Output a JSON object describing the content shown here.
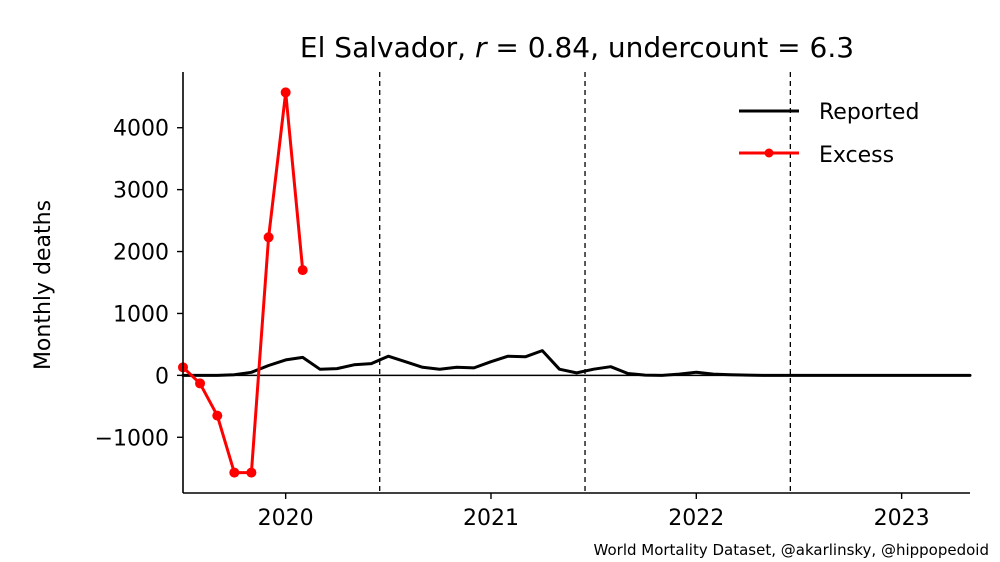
{
  "chart_data": {
    "type": "line",
    "title_parts": {
      "country": "El Salvador, ",
      "r_symbol": "r",
      "r_value": " = 0.84, undercount = 6.3"
    },
    "ylabel": "Monthly deaths",
    "ylim": [
      -1900,
      4900
    ],
    "xlim": [
      2019.5,
      2023.333
    ],
    "y_ticks": [
      {
        "value": -1000,
        "label": "−1000"
      },
      {
        "value": 0,
        "label": "0"
      },
      {
        "value": 1000,
        "label": "1000"
      },
      {
        "value": 2000,
        "label": "2000"
      },
      {
        "value": 3000,
        "label": "3000"
      },
      {
        "value": 4000,
        "label": "4000"
      }
    ],
    "x_ticks": [
      {
        "value": 2020,
        "label": "2020"
      },
      {
        "value": 2021,
        "label": "2021"
      },
      {
        "value": 2022,
        "label": "2022"
      },
      {
        "value": 2023,
        "label": "2023"
      }
    ],
    "vlines": [
      2020.458,
      2021.458,
      2022.458
    ],
    "legend_position": "top-right",
    "series": [
      {
        "name": "Reported",
        "color": "#000000",
        "markers": false,
        "x": [
          2019.5,
          2019.583,
          2019.667,
          2019.75,
          2019.833,
          2019.917,
          2020.0,
          2020.083,
          2020.167,
          2020.25,
          2020.333,
          2020.417,
          2020.5,
          2020.583,
          2020.667,
          2020.75,
          2020.833,
          2020.917,
          2021.0,
          2021.083,
          2021.167,
          2021.25,
          2021.333,
          2021.417,
          2021.5,
          2021.583,
          2021.667,
          2021.75,
          2021.833,
          2021.917,
          2022.0,
          2022.083,
          2022.167,
          2022.25,
          2022.333,
          2022.417,
          2022.5,
          2022.583,
          2022.667,
          2022.75,
          2022.833,
          2022.917,
          2023.0,
          2023.083,
          2023.167,
          2023.25,
          2023.333
        ],
        "values": [
          0,
          0,
          0,
          10,
          50,
          160,
          250,
          290,
          100,
          110,
          170,
          190,
          310,
          220,
          130,
          100,
          130,
          120,
          220,
          310,
          300,
          400,
          100,
          40,
          100,
          140,
          30,
          5,
          0,
          20,
          50,
          20,
          10,
          5,
          0,
          0,
          0,
          0,
          0,
          0,
          0,
          0,
          0,
          0,
          0,
          0,
          0
        ]
      },
      {
        "name": "Excess",
        "color": "#ff0000",
        "markers": true,
        "x": [
          2019.5,
          2019.583,
          2019.667,
          2019.75,
          2019.833,
          2019.917,
          2020.0,
          2020.083
        ],
        "values": [
          130,
          -130,
          -650,
          -1570,
          -1570,
          2230,
          4570,
          1700
        ]
      }
    ]
  },
  "credit": "World Mortality Dataset, @akarlinsky, @hippopedoid"
}
